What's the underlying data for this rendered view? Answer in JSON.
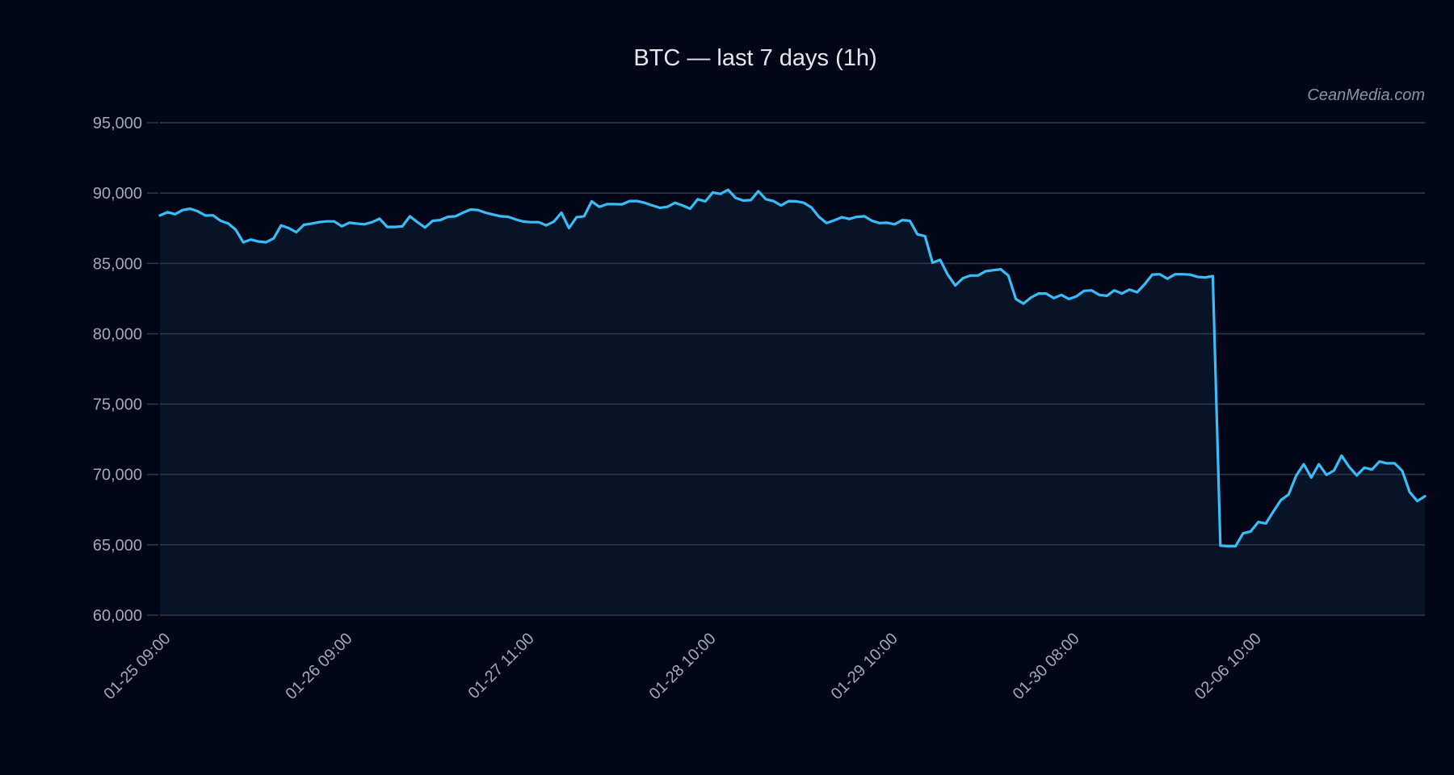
{
  "header": {
    "title": "BTC — last 7 days (1h)",
    "watermark": "CeanMedia.com"
  },
  "colors": {
    "background": "#020617",
    "plot_fill": "#071427",
    "line": "#38bdf8",
    "grid": "#2a3548",
    "tick_label": "#a3a9b5",
    "title": "#e5e7eb"
  },
  "chart_data": {
    "type": "area",
    "title": "BTC — last 7 days (1h)",
    "xlabel": "",
    "ylabel": "",
    "ylim": [
      60000,
      95000
    ],
    "yticks": [
      60000,
      65000,
      70000,
      75000,
      80000,
      85000,
      90000,
      95000
    ],
    "ytick_labels": [
      "60,000",
      "65,000",
      "70,000",
      "75,000",
      "80,000",
      "85,000",
      "90,000",
      "95,000"
    ],
    "xtick_indices": [
      0,
      24,
      48,
      72,
      96,
      120,
      144
    ],
    "xtick_labels": [
      "01-25 09:00",
      "01-26 09:00",
      "01-27 11:00",
      "01-28 10:00",
      "01-29 10:00",
      "01-30 08:00",
      "02-06 10:00"
    ],
    "grid": "horizontal",
    "legend": "none",
    "annotation": "CeanMedia.com",
    "series": [
      {
        "name": "BTC",
        "values": [
          88410,
          88640,
          88500,
          88790,
          88890,
          88700,
          88400,
          88420,
          88030,
          87840,
          87400,
          86500,
          86690,
          86560,
          86500,
          86780,
          87700,
          87510,
          87220,
          87740,
          87830,
          87930,
          87990,
          87990,
          87640,
          87890,
          87830,
          87780,
          87930,
          88180,
          87590,
          87590,
          87640,
          88350,
          87930,
          87550,
          88030,
          88080,
          88310,
          88350,
          88600,
          88830,
          88790,
          88600,
          88470,
          88350,
          88310,
          88120,
          87970,
          87930,
          87930,
          87700,
          87970,
          88600,
          87510,
          88280,
          88350,
          89410,
          89020,
          89210,
          89210,
          89200,
          89430,
          89430,
          89310,
          89120,
          88950,
          89020,
          89310,
          89120,
          88890,
          89560,
          89410,
          90040,
          89940,
          90230,
          89660,
          89470,
          89500,
          90130,
          89560,
          89430,
          89120,
          89430,
          89410,
          89310,
          88980,
          88310,
          87870,
          88060,
          88280,
          88160,
          88310,
          88350,
          88030,
          87870,
          87890,
          87780,
          88080,
          88030,
          87070,
          86940,
          85050,
          85250,
          84200,
          83430,
          83950,
          84140,
          84140,
          84440,
          84520,
          84580,
          84140,
          82470,
          82140,
          82580,
          82860,
          82860,
          82530,
          82760,
          82470,
          82660,
          83050,
          83080,
          82760,
          82700,
          83080,
          82860,
          83140,
          82950,
          83520,
          84200,
          84230,
          83910,
          84230,
          84230,
          84200,
          84040,
          84000,
          84100,
          64940,
          64900,
          64900,
          65820,
          65950,
          66620,
          66520,
          67380,
          68180,
          68570,
          69910,
          70730,
          69780,
          70730,
          69970,
          70290,
          71340,
          70540,
          69930,
          70480,
          70350,
          70920,
          70790,
          70790,
          70260,
          68740,
          68110,
          68450
        ]
      }
    ]
  }
}
